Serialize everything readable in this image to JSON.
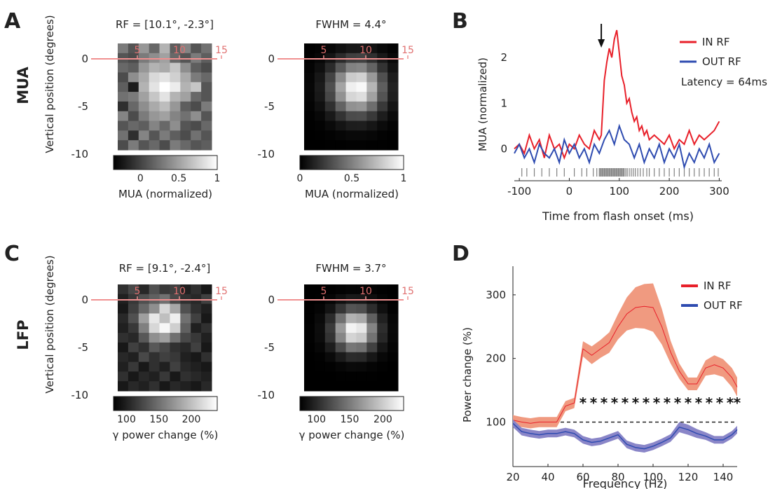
{
  "figure": {
    "panel_letters": {
      "A": "A",
      "B": "B",
      "C": "C",
      "D": "D"
    },
    "row_labels": {
      "mua": "MUA",
      "lfp": "LFP"
    }
  },
  "colors": {
    "in_rf": "#e8202a",
    "out_rf": "#2e4bb0",
    "in_rf_band": "#f09a80",
    "out_rf_band": "#8a86c8",
    "overlay_line": "#f09090",
    "overlay_tick": "#e07070",
    "raster": "#808080"
  },
  "chart_data": [
    {
      "id": "A-raw",
      "type": "heatmap",
      "title": "RF = [10.1°, -2.3°]",
      "ylabel": "Vertical position (degrees)",
      "yticks": [
        "0",
        "-5",
        "-10"
      ],
      "overlay_xticks": [
        "5",
        "10",
        "15"
      ],
      "colorbar": {
        "ticks": [
          "0",
          "0.5",
          "1"
        ],
        "label": "MUA (normalized)",
        "range": [
          -0.35,
          1
        ]
      },
      "values": [
        [
          0.3,
          0.1,
          0.45,
          0.2,
          0.6,
          0.15,
          0.35,
          0.1,
          0.25
        ],
        [
          0.1,
          0.05,
          0.3,
          0.4,
          0.5,
          0.2,
          0.1,
          0.3,
          0.15
        ],
        [
          0.2,
          0.15,
          0.45,
          0.6,
          0.55,
          0.7,
          0.4,
          0.15,
          0.05
        ],
        [
          0.05,
          0.4,
          0.55,
          0.8,
          0.85,
          0.75,
          0.55,
          0.3,
          0.2
        ],
        [
          0.15,
          -0.2,
          0.6,
          0.85,
          1.0,
          0.9,
          0.6,
          0.7,
          0.1
        ],
        [
          0.25,
          0.3,
          0.5,
          0.7,
          0.85,
          0.6,
          0.5,
          0.2,
          0.1
        ],
        [
          -0.1,
          0.2,
          0.4,
          0.55,
          0.65,
          0.45,
          0.15,
          0.05,
          0.3
        ],
        [
          0.35,
          0.05,
          0.3,
          0.45,
          0.5,
          0.35,
          0.25,
          0.4,
          0.1
        ],
        [
          0.1,
          0.2,
          0.15,
          0.35,
          0.2,
          0.4,
          0.1,
          0.05,
          0.2
        ],
        [
          0.25,
          -0.1,
          0.35,
          0.1,
          0.3,
          0.15,
          0.05,
          0.25,
          0.1
        ],
        [
          0.05,
          0.3,
          0.1,
          0.2,
          0.05,
          0.3,
          0.2,
          0.1,
          0.15
        ]
      ]
    },
    {
      "id": "A-fit",
      "type": "heatmap",
      "title": "FWHM = 4.4°",
      "yticks": [
        "0",
        "-5",
        "-10"
      ],
      "overlay_xticks": [
        "5",
        "10",
        "15"
      ],
      "colorbar": {
        "ticks": [
          "0",
          "0.5",
          "1"
        ],
        "label": "MUA (normalized)",
        "range": [
          0,
          1
        ]
      },
      "gaussian": {
        "center_col": 4.6,
        "center_row": 4.1,
        "sigma_col": 1.7,
        "sigma_row": 1.9,
        "cols": 9,
        "rows": 11
      }
    },
    {
      "id": "B",
      "type": "line",
      "xlabel": "Time from flash onset (ms)",
      "ylabel": "MUA (normalized)",
      "xlim": [
        -110,
        305
      ],
      "ylim": [
        -0.7,
        2.8
      ],
      "xticks": [
        -100,
        0,
        100,
        200,
        300
      ],
      "yticks": [
        0,
        1,
        2
      ],
      "legend": [
        "IN RF",
        "OUT RF"
      ],
      "legend_loc": "top-right",
      "annotation": "Latency = 64ms",
      "arrow_x": 64,
      "series": [
        {
          "name": "IN RF",
          "x": [
            -110,
            -100,
            -90,
            -80,
            -70,
            -60,
            -50,
            -40,
            -30,
            -20,
            -10,
            0,
            10,
            20,
            30,
            40,
            50,
            60,
            64,
            70,
            75,
            80,
            85,
            90,
            95,
            100,
            105,
            110,
            115,
            120,
            125,
            130,
            135,
            140,
            145,
            150,
            155,
            160,
            170,
            180,
            190,
            200,
            210,
            220,
            230,
            240,
            250,
            260,
            270,
            280,
            290,
            300
          ],
          "values": [
            0.0,
            0.1,
            -0.1,
            0.3,
            0.0,
            0.2,
            -0.2,
            0.3,
            0.0,
            0.1,
            -0.2,
            0.1,
            0.0,
            0.3,
            0.1,
            0.0,
            0.4,
            0.2,
            0.3,
            1.5,
            1.9,
            2.2,
            2.0,
            2.4,
            2.6,
            2.1,
            1.6,
            1.4,
            1.0,
            1.1,
            0.8,
            0.6,
            0.7,
            0.4,
            0.5,
            0.3,
            0.4,
            0.2,
            0.3,
            0.2,
            0.1,
            0.3,
            0.0,
            0.2,
            0.1,
            0.4,
            0.1,
            0.3,
            0.2,
            0.3,
            0.4,
            0.6
          ]
        },
        {
          "name": "OUT RF",
          "x": [
            -110,
            -100,
            -90,
            -80,
            -70,
            -60,
            -50,
            -40,
            -30,
            -20,
            -10,
            0,
            10,
            20,
            30,
            40,
            50,
            60,
            70,
            80,
            90,
            100,
            110,
            120,
            130,
            140,
            150,
            160,
            170,
            180,
            190,
            200,
            210,
            220,
            230,
            240,
            250,
            260,
            270,
            280,
            290,
            300
          ],
          "values": [
            -0.1,
            0.1,
            -0.2,
            0.0,
            -0.3,
            0.1,
            -0.1,
            -0.2,
            0.0,
            -0.3,
            0.2,
            -0.1,
            0.1,
            -0.2,
            0.0,
            -0.3,
            0.1,
            -0.1,
            0.2,
            0.4,
            0.1,
            0.5,
            0.2,
            0.1,
            -0.2,
            0.1,
            -0.3,
            0.0,
            -0.2,
            0.1,
            -0.3,
            0.0,
            -0.2,
            0.1,
            -0.4,
            -0.1,
            -0.3,
            0.0,
            -0.2,
            0.1,
            -0.3,
            -0.1
          ]
        }
      ],
      "raster_x": [
        -95,
        -85,
        -70,
        -55,
        -40,
        -25,
        -10,
        10,
        25,
        35,
        48,
        55,
        60,
        62,
        64,
        66,
        68,
        70,
        72,
        74,
        76,
        78,
        80,
        82,
        84,
        86,
        88,
        90,
        92,
        94,
        96,
        98,
        100,
        102,
        104,
        106,
        108,
        110,
        113,
        116,
        120,
        124,
        128,
        132,
        137,
        142,
        148,
        155,
        160,
        170,
        180,
        190,
        200,
        210,
        220,
        230,
        240,
        250,
        260,
        270,
        280,
        290,
        298
      ]
    },
    {
      "id": "C-raw",
      "type": "heatmap",
      "title": "RF = [9.1°, -2.4°]",
      "ylabel": "Vertical position (degrees)",
      "yticks": [
        "0",
        "-5",
        "-10"
      ],
      "overlay_xticks": [
        "5",
        "10",
        "15"
      ],
      "colorbar": {
        "ticks": [
          "100",
          "150",
          "200"
        ],
        "label": "γ power change (%)",
        "range": [
          80,
          240
        ]
      },
      "values": [
        [
          110,
          125,
          105,
          130,
          115,
          120,
          100,
          110,
          95
        ],
        [
          100,
          115,
          130,
          140,
          150,
          125,
          110,
          105,
          120
        ],
        [
          95,
          120,
          145,
          170,
          215,
          185,
          130,
          110,
          100
        ],
        [
          105,
          130,
          180,
          225,
          200,
          230,
          150,
          120,
          95
        ],
        [
          100,
          115,
          160,
          215,
          235,
          210,
          140,
          100,
          110
        ],
        [
          110,
          105,
          135,
          170,
          180,
          150,
          125,
          115,
          100
        ],
        [
          95,
          120,
          110,
          135,
          125,
          110,
          105,
          120,
          95
        ],
        [
          105,
          100,
          125,
          110,
          120,
          115,
          100,
          95,
          110
        ],
        [
          100,
          115,
          95,
          110,
          100,
          120,
          105,
          100,
          95
        ],
        [
          110,
          95,
          105,
          100,
          115,
          95,
          110,
          105,
          100
        ],
        [
          95,
          105,
          100,
          110,
          95,
          105,
          100,
          95,
          105
        ]
      ]
    },
    {
      "id": "C-fit",
      "type": "heatmap",
      "title": "FWHM = 3.7°",
      "yticks": [
        "0",
        "-5",
        "-10"
      ],
      "overlay_xticks": [
        "5",
        "10",
        "15"
      ],
      "colorbar": {
        "ticks": [
          "100",
          "150",
          "200"
        ],
        "label": "γ power change (%)",
        "range": [
          0,
          1
        ]
      },
      "gaussian": {
        "center_col": 4.4,
        "center_row": 4.2,
        "sigma_col": 1.4,
        "sigma_row": 1.5,
        "cols": 9,
        "rows": 11
      }
    },
    {
      "id": "D",
      "type": "line",
      "xlabel": "Frequency (Hz)",
      "ylabel": "Power change (%)",
      "xlim": [
        20,
        148
      ],
      "ylim": [
        30,
        345
      ],
      "xticks": [
        20,
        40,
        60,
        80,
        100,
        120,
        140
      ],
      "yticks": [
        100,
        200,
        300
      ],
      "legend": [
        "IN RF",
        "OUT RF"
      ],
      "legend_loc": "top-right",
      "baseline": 100,
      "star_x": [
        60,
        66,
        72,
        78,
        84,
        90,
        96,
        102,
        108,
        114,
        120,
        126,
        132,
        138,
        144,
        148
      ],
      "series": [
        {
          "name": "IN RF",
          "x": [
            20,
            25,
            30,
            35,
            40,
            45,
            50,
            55,
            60,
            65,
            70,
            75,
            80,
            85,
            90,
            95,
            100,
            105,
            110,
            115,
            120,
            125,
            130,
            135,
            140,
            145,
            148
          ],
          "values": [
            103,
            100,
            98,
            100,
            100,
            100,
            125,
            130,
            215,
            205,
            215,
            225,
            250,
            270,
            280,
            282,
            280,
            250,
            210,
            180,
            160,
            160,
            185,
            190,
            185,
            170,
            155
          ],
          "band": [
            8,
            8,
            8,
            8,
            8,
            8,
            8,
            8,
            12,
            14,
            14,
            16,
            20,
            26,
            32,
            35,
            38,
            28,
            18,
            12,
            10,
            10,
            12,
            15,
            14,
            15,
            15
          ]
        },
        {
          "name": "OUT RF",
          "x": [
            20,
            25,
            30,
            35,
            40,
            45,
            50,
            55,
            60,
            65,
            70,
            75,
            80,
            85,
            90,
            95,
            100,
            105,
            110,
            115,
            120,
            125,
            130,
            135,
            140,
            145,
            148
          ],
          "values": [
            98,
            85,
            82,
            80,
            82,
            82,
            85,
            82,
            72,
            68,
            70,
            75,
            80,
            65,
            60,
            58,
            62,
            68,
            75,
            92,
            88,
            82,
            78,
            72,
            72,
            80,
            88
          ],
          "band": [
            6,
            6,
            6,
            6,
            6,
            6,
            6,
            6,
            6,
            6,
            6,
            6,
            6,
            6,
            6,
            6,
            6,
            6,
            6,
            8,
            8,
            7,
            6,
            6,
            6,
            6,
            6
          ]
        }
      ]
    }
  ]
}
